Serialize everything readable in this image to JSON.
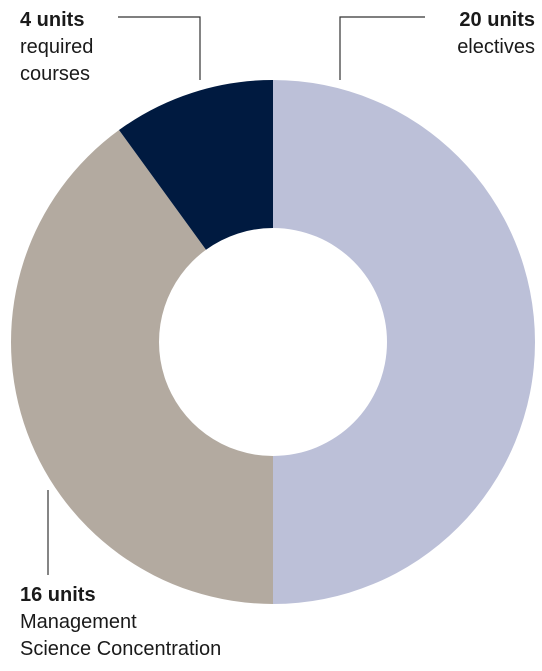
{
  "chart_data": {
    "type": "donut",
    "categories": [
      "electives",
      "Management\nScience Concentration",
      "required\ncourses"
    ],
    "values": [
      20,
      16,
      4
    ],
    "value_labels": [
      "20 units",
      "16 units",
      "4 units"
    ],
    "colors": [
      "#bcc0d8",
      "#b3aaa0",
      "#001a40"
    ]
  }
}
